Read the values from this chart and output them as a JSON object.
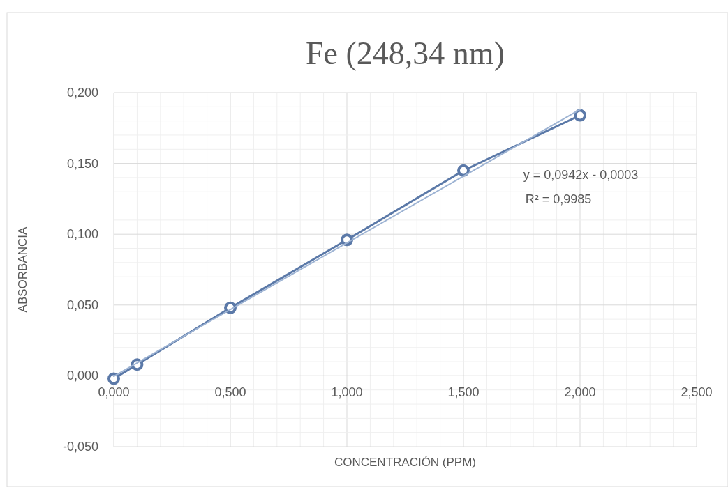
{
  "chart_data": {
    "type": "line",
    "title": "Fe (248,34 nm)",
    "xlabel": "CONCENTRACIÓN (PPM)",
    "ylabel": "ABSORBANCIA",
    "x": [
      0,
      0.1,
      0.5,
      1.0,
      1.5,
      2.0
    ],
    "series": [
      {
        "color": "#5b79a8",
        "marker": "circle",
        "values": [
          -0.002,
          0.008,
          0.048,
          0.096,
          0.145,
          0.184
        ]
      },
      {
        "color": "#9db3d3",
        "marker": "none",
        "x": [
          0,
          2
        ],
        "values": [
          -0.0003,
          0.1881
        ]
      }
    ],
    "xlim": [
      0,
      2.5
    ],
    "ylim": [
      -0.05,
      0.2
    ],
    "xticks": [
      {
        "value": 0,
        "label": "0,000"
      },
      {
        "value": 0.1,
        "label": null
      },
      {
        "value": 0.2,
        "label": null
      },
      {
        "value": 0.3,
        "label": null
      },
      {
        "value": 0.4,
        "label": null
      },
      {
        "value": 0.5,
        "label": "0,500"
      },
      {
        "value": 0.6,
        "label": null
      },
      {
        "value": 0.7,
        "label": null
      },
      {
        "value": 0.8,
        "label": null
      },
      {
        "value": 0.9,
        "label": null
      },
      {
        "value": 1.0,
        "label": "1,000"
      },
      {
        "value": 1.1,
        "label": null
      },
      {
        "value": 1.2,
        "label": null
      },
      {
        "value": 1.3,
        "label": null
      },
      {
        "value": 1.4,
        "label": null
      },
      {
        "value": 1.5,
        "label": "1,500"
      },
      {
        "value": 1.6,
        "label": null
      },
      {
        "value": 1.7,
        "label": null
      },
      {
        "value": 1.8,
        "label": null
      },
      {
        "value": 1.9,
        "label": null
      },
      {
        "value": 2.0,
        "label": "2,000"
      },
      {
        "value": 2.1,
        "label": null
      },
      {
        "value": 2.2,
        "label": null
      },
      {
        "value": 2.3,
        "label": null
      },
      {
        "value": 2.4,
        "label": null
      },
      {
        "value": 2.5,
        "label": "2,500"
      }
    ],
    "yticks": [
      {
        "value": -0.05,
        "label": "-0,050"
      },
      {
        "value": -0.04,
        "label": null
      },
      {
        "value": -0.03,
        "label": null
      },
      {
        "value": -0.02,
        "label": null
      },
      {
        "value": -0.01,
        "label": null
      },
      {
        "value": 0,
        "label": "0,000"
      },
      {
        "value": 0.01,
        "label": null
      },
      {
        "value": 0.02,
        "label": null
      },
      {
        "value": 0.03,
        "label": null
      },
      {
        "value": 0.04,
        "label": null
      },
      {
        "value": 0.05,
        "label": "0,050"
      },
      {
        "value": 0.06,
        "label": null
      },
      {
        "value": 0.07,
        "label": null
      },
      {
        "value": 0.08,
        "label": null
      },
      {
        "value": 0.09,
        "label": null
      },
      {
        "value": 0.1,
        "label": "0,100"
      },
      {
        "value": 0.11,
        "label": null
      },
      {
        "value": 0.12,
        "label": null
      },
      {
        "value": 0.13,
        "label": null
      },
      {
        "value": 0.14,
        "label": null
      },
      {
        "value": 0.15,
        "label": "0,150"
      },
      {
        "value": 0.16,
        "label": null
      },
      {
        "value": 0.17,
        "label": null
      },
      {
        "value": 0.18,
        "label": null
      },
      {
        "value": 0.19,
        "label": null
      },
      {
        "value": 0.2,
        "label": "0,200"
      }
    ],
    "grid": true,
    "annotations": [
      "y = 0,0942x - 0,0003",
      "R² = 0,9985"
    ]
  }
}
